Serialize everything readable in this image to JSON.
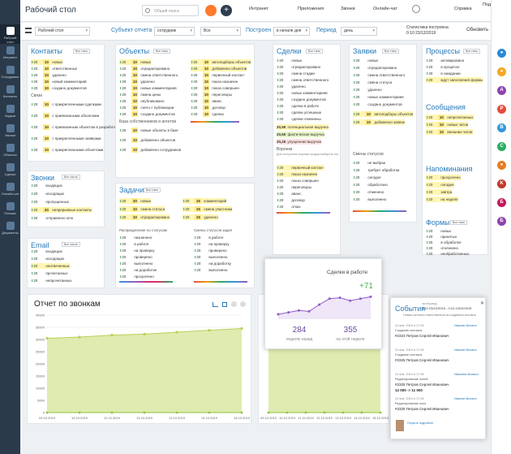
{
  "app": {
    "title": "Рабочий стол",
    "search_placeholder": "Общий поиск"
  },
  "topnav": [
    {
      "label": "Интранет"
    },
    {
      "label": "Приложения"
    },
    {
      "label": "Звонки"
    },
    {
      "label": "Онлайн-чат"
    },
    {
      "label": "Справка"
    },
    {
      "label": "Поддержка"
    }
  ],
  "leftnav": [
    "Рабочий стол",
    "Интранет",
    "Сотрудники",
    "Контакты",
    "Задачи",
    "Звонки",
    "Объекты",
    "Сделки",
    "Онлайн-чат",
    "Письма",
    "Документы"
  ],
  "filters": {
    "board": "Рабочий стол",
    "subject_label": "Субъект отчета",
    "subject": "сотрудник",
    "all": "Все",
    "build_label": "Построен",
    "build": "в начале дня",
    "period_label": "Период",
    "period": "день",
    "stats_title": "Статистика построена",
    "stats_date": "0:10 23/12/2019",
    "refresh": "Обновить"
  },
  "contacts": {
    "title": "Контакты",
    "all_types": "Все типы",
    "rows": [
      {
        "n": "20",
        "b": "10",
        "t": "новых"
      },
      {
        "n": "20",
        "b": "10",
        "t": "ответственных"
      },
      {
        "n": "20",
        "b": "10",
        "t": "удалено"
      },
      {
        "n": "20",
        "b": "10",
        "t": "новый комментарий"
      },
      {
        "n": "20",
        "b": "10",
        "t": "создано документов"
      }
    ],
    "links_title": "Связи",
    "links": [
      {
        "n": "20",
        "b": "10",
        "t": "с прикрепленными сделками"
      },
      {
        "n": "20",
        "b": "10",
        "t": "с привязанными объектами"
      },
      {
        "n": "20",
        "b": "10",
        "t": "с привязанным объектом в разработке"
      },
      {
        "n": "20",
        "b": "10",
        "t": "с прикрепленными заявками"
      },
      {
        "n": "20",
        "b": "10",
        "t": "с прикрепленными объектами"
      }
    ]
  },
  "calls": {
    "title": "Звонки",
    "all": "Все числа",
    "rows": [
      "входящих",
      "исходящих",
      "пропущенных",
      "непрерывные контакты",
      "отправлено sms"
    ]
  },
  "email": {
    "title": "Email",
    "all": "Все числа",
    "rows": [
      "входящих",
      "исходящих",
      "неотвеченных",
      "прочитанных",
      "непрочитанных"
    ]
  },
  "objects": {
    "title": "Объекты",
    "all": "Все типы",
    "rows": [
      {
        "b": "10",
        "t": "новых"
      },
      {
        "b": "10",
        "t": "отредактировано"
      },
      {
        "b": "10",
        "t": "смена ответственного"
      },
      {
        "b": "10",
        "t": "удалено"
      },
      {
        "b": "10",
        "t": "новых комментариев"
      },
      {
        "b": "10",
        "t": "смена цены"
      },
      {
        "b": "10",
        "t": "опубликовано"
      },
      {
        "b": "10",
        "t": "снято с публикации"
      },
      {
        "b": "10",
        "t": "создано документов"
      }
    ],
    "right": [
      "автоподборы объектов",
      "добавлено объектов",
      "первичный контакт",
      "показ назначен",
      "показ совершен",
      "переговоры",
      "аванс",
      "договор",
      "сделка"
    ],
    "db_title": "База собственников и агентов",
    "db_rows": [
      "новые объекты в базе",
      "добавлено объектов",
      "добавлено сотрудников"
    ]
  },
  "tasks": {
    "title": "Задачи",
    "all": "Все типы",
    "rows": [
      {
        "b": "20",
        "t": "новых",
        "c": "комментарий"
      },
      {
        "b": "10",
        "t": "смена статуса",
        "c": "смена участника"
      },
      {
        "b": "10",
        "t": "отредактировано",
        "c": "удалено"
      }
    ],
    "dist_title": "Распределение по статусам",
    "dist": [
      "назначено",
      "в работе",
      "на проверку",
      "проверено",
      "выполнено",
      "на доработке",
      "просрочено"
    ],
    "chg_title": "Смены статусов задач",
    "chg": [
      "в работе",
      "на проверку",
      "проверено",
      "выполнено",
      "на доработку",
      "выполнено"
    ]
  },
  "deals": {
    "title": "Сделки",
    "all": "Все типы",
    "rows": [
      "новых",
      "отредактировано",
      "смена стадии",
      "смена ответственного",
      "удалено",
      "новых комментариев",
      "создано документов",
      "сделки в работе",
      "сделки успешные",
      "сделки отменены"
    ],
    "money": [
      {
        "v": "20,5К",
        "t": "потенциальная выручка"
      },
      {
        "v": "20,6К",
        "t": "фактическая выручка"
      },
      {
        "v": "20,2К",
        "t": "упущенная выручка"
      }
    ],
    "funnel_title": "Воронки",
    "funnel_sub": "Для построения воронки продаж выберите тип",
    "funnel": [
      "первичный контакт",
      "показ назначен",
      "показ совершен",
      "переговоры",
      "аванс",
      "договор",
      "отказ"
    ]
  },
  "requests": {
    "title": "Заявки",
    "all": "Все типы",
    "rows": [
      "новых",
      "отредактировано",
      "смена ответственного",
      "смена статуса",
      "удалено",
      "новых комментариев",
      "создано документов"
    ],
    "right": [
      "автоподборы объектов",
      "добавлено заявок"
    ],
    "chg_title": "Смены статусов",
    "chg": [
      "не выбран",
      "требует обработки",
      "сегодня",
      "обработано",
      "отменено",
      "выполнено"
    ]
  },
  "processes": {
    "title": "Процессы",
    "all": "Все типы",
    "rows": [
      "активировано",
      "в процессе",
      "в ожидании",
      "ждут заполнения формы"
    ]
  },
  "messages": {
    "title": "Сообщения",
    "rows": [
      "непрочитанных",
      "новых чатов",
      "внешних чатов"
    ]
  },
  "reminders": {
    "title": "Напоминания",
    "rows": [
      "просрочено",
      "сегодня",
      "завтра",
      "на неделе"
    ]
  },
  "forms": {
    "title": "Формы",
    "all": "Все типы",
    "rows": [
      "новых",
      "принятых",
      "в обработке",
      "отклонено",
      "необработанных"
    ]
  },
  "chart_data": [
    {
      "type": "area",
      "title": "Отчет по звонкам",
      "x": [
        "09.10.2019",
        "10.10.2019",
        "11.10.2019",
        "12.10.2019",
        "13.10.2019",
        "14.10.2019",
        "15.10.2019"
      ],
      "ylim": [
        0,
        40000
      ],
      "yticks": [
        "40000",
        "35000",
        "30000",
        "25000",
        "20000",
        "15000",
        "10000",
        "5000",
        "0"
      ],
      "series": [
        {
          "values": [
            30500,
            31000,
            31800,
            32200,
            33000,
            33800,
            34500
          ]
        }
      ]
    },
    {
      "type": "area",
      "x": [
        "09.10.2019",
        "10.10.2019",
        "11.10.2019",
        "12.10.2019",
        "13.10.2019",
        "14.10.2019",
        "15.10.2019"
      ],
      "series": [
        {
          "values": [
            34000,
            34000,
            34000,
            34000,
            34000,
            34000,
            34000
          ]
        }
      ]
    }
  ],
  "deals_card": {
    "title": "Сделки в работе",
    "delta": "+71",
    "week_prev": "284",
    "week_prev_label": "неделю назад",
    "week_cur": "355",
    "week_cur_label": "на этой неделе"
  },
  "events": {
    "title": "События",
    "period_label": "за период",
    "period": "0:10 23/12/2019 - 0:10 24/12/2019",
    "sub": "Новые контакты ответственный за созданием контакта",
    "items": [
      {
        "date": "24 янв. 2019 в 17:06",
        "who": "Иванов Михаил",
        "text": "Создание контакта",
        "id": "#2323 Петров Сергей Иванович"
      },
      {
        "date": "24 янв. 2019 в 17:06",
        "who": "Иванов Михаил",
        "text": "Создание контакта",
        "id": "#2325 Петров Сергей Иванович"
      },
      {
        "date": "24 янв. 2019 в 17:06",
        "who": "Иванова Михаил",
        "text": "Редактирование полей",
        "id": "#2325 Петров Сергей Иванович",
        "delta": "12 000 -> 11 000"
      },
      {
        "date": "24 янв. 2019 в 17:06",
        "who": "Иванов Михаил",
        "text": "Редактирование поля",
        "id": "#2325 Петров Сергей Иванович"
      }
    ],
    "more": "Открыть подробнее"
  }
}
